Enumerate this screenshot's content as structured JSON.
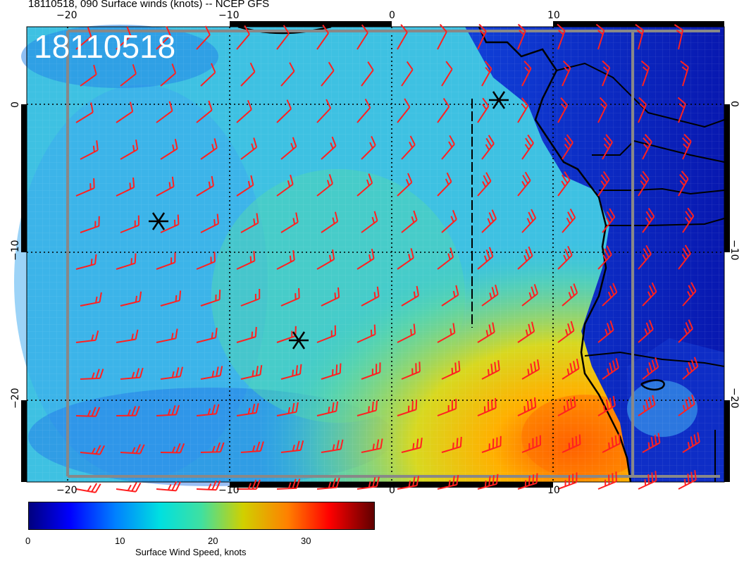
{
  "header": {
    "title": "18110518, 090 Surface winds (knots) -- NCEP GFS"
  },
  "map": {
    "date_stamp": "18110518",
    "lon_ticks": [
      "−20",
      "−10",
      "0",
      "10"
    ],
    "lat_ticks": [
      "0",
      "−10",
      "−20"
    ]
  },
  "colorbar": {
    "ticks": [
      "0",
      "10",
      "20",
      "30"
    ],
    "title": "Surface Wind Speed, knots"
  },
  "colors": {
    "barb": "#ff2020",
    "coast": "#000000",
    "ocean_mid": "#30c8d8"
  },
  "markers": [
    "star-marker",
    "star-marker",
    "star-marker"
  ]
}
